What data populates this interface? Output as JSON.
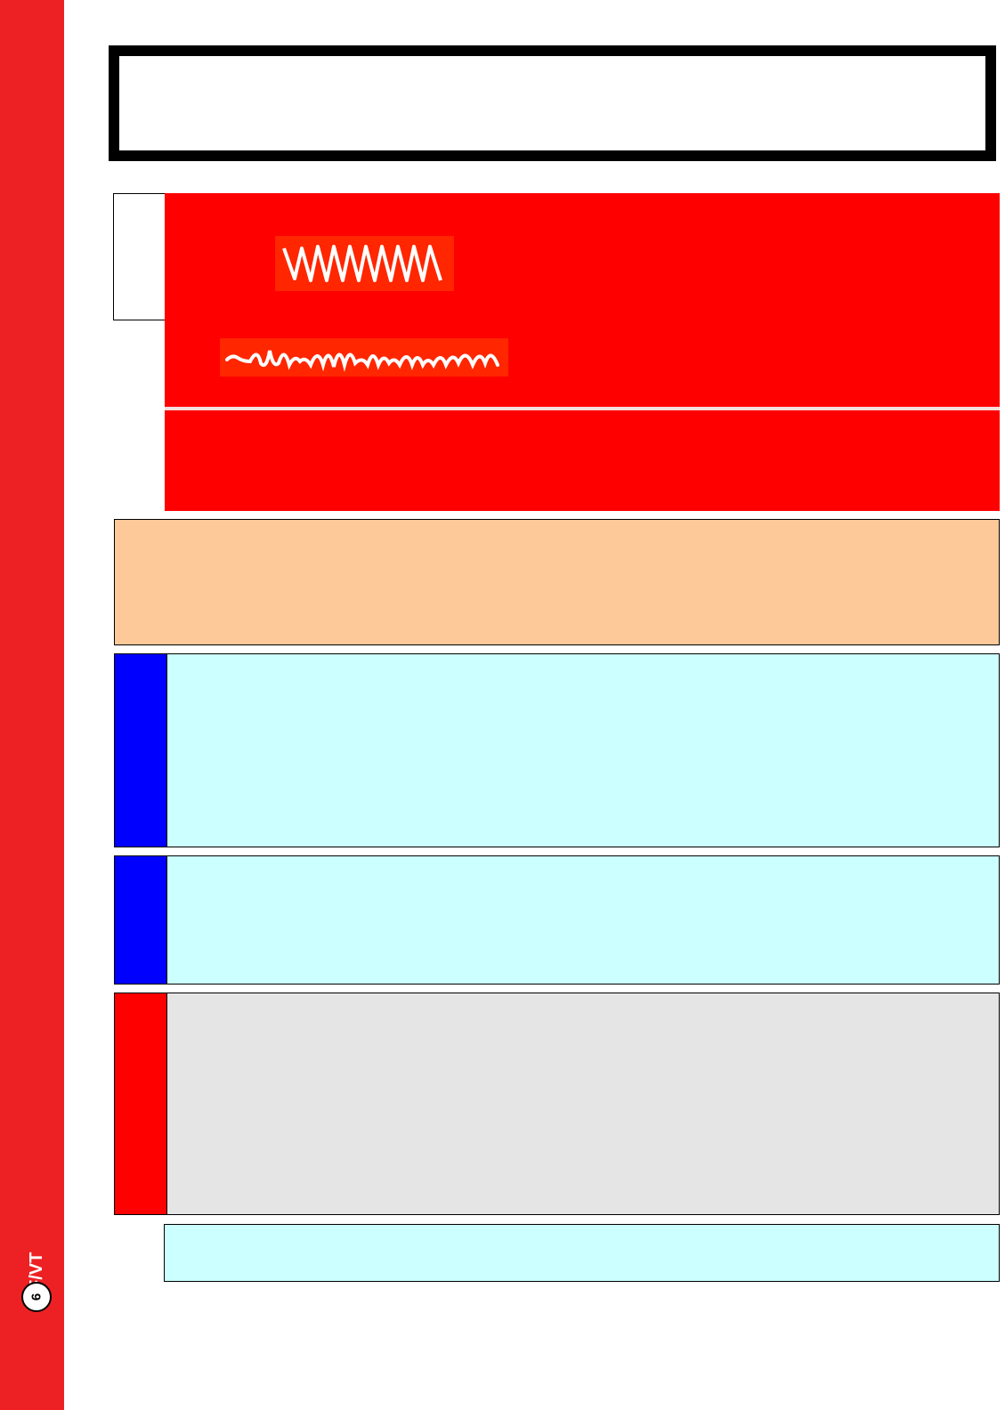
{
  "side_tab": {
    "page_number": "6",
    "section": "VF/VT"
  },
  "colors": {
    "side_strip": "#ed2124",
    "alert_red": "#ff0000",
    "peach": "#fec999",
    "cyan": "#ccffff",
    "blue": "#0000ff",
    "grey": "#e5e5e5"
  },
  "icons": {
    "rhythm_strip_1": "ventricular-tachycardia-waveform",
    "rhythm_strip_2": "ventricular-fibrillation-waveform"
  }
}
